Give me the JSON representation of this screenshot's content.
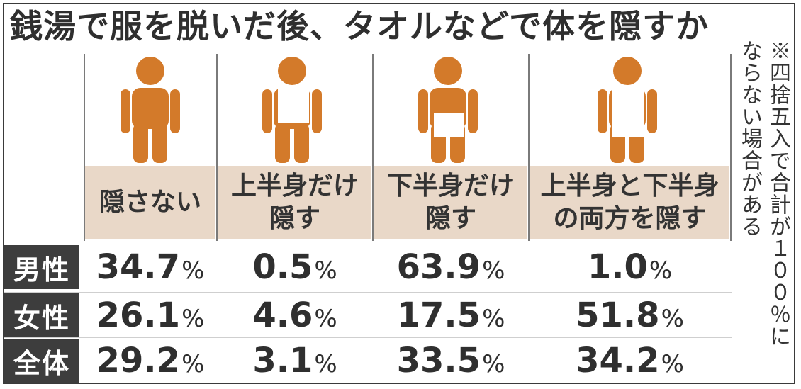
{
  "title": "銭湯で服を脱いだ後、タオルなどで体を隠すか",
  "note": [
    "※四捨五入で合計が１００％に",
    "ならない場合がある"
  ],
  "colors": {
    "figure": "#d37a2a",
    "towel": "#ffffff",
    "label_band": "#e9d8c8",
    "row_header": "#3d3d3d"
  },
  "chart_data": {
    "type": "table",
    "title": "銭湯で服を脱いだ後、タオルなどで体を隠すか",
    "columns": [
      {
        "label": "隠さない",
        "icon": "person-no-towel-icon"
      },
      {
        "label": "上半身だけ\n隠す",
        "icon": "person-upper-towel-icon"
      },
      {
        "label": "下半身だけ\n隠す",
        "icon": "person-lower-towel-icon"
      },
      {
        "label": "上半身と下半身\nの両方を隠す",
        "icon": "person-full-towel-icon"
      }
    ],
    "unit": "%",
    "rows": [
      {
        "label": "男性",
        "values": [
          "34.7",
          "0.5",
          "63.9",
          "1.0"
        ]
      },
      {
        "label": "女性",
        "values": [
          "26.1",
          "4.6",
          "17.5",
          "51.8"
        ]
      },
      {
        "label": "全体",
        "values": [
          "29.2",
          "3.1",
          "33.5",
          "34.2"
        ]
      }
    ]
  }
}
